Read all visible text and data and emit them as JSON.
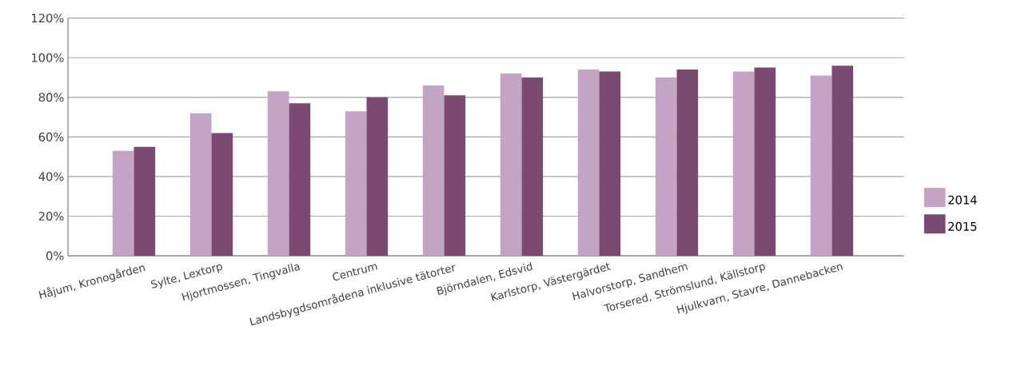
{
  "chart_data": {
    "type": "bar",
    "categories": [
      "Håjum, Kronogården",
      "Sylte, Lextorp",
      "Hjortmossen, Tingvalla",
      "Centrum",
      "Landsbygdsområdena inklusive tätorter",
      "Björndalen, Edsvid",
      "Karlstorp, Västergärdet",
      "Halvorstorp, Sandhem",
      "Torsered, Strömslund, Källstorp",
      "Hjulkvarn, Stavre, Dannebacken"
    ],
    "series": [
      {
        "name": "2014",
        "color": "#c4a4c4",
        "values": [
          53,
          72,
          83,
          73,
          86,
          92,
          94,
          90,
          93,
          91
        ]
      },
      {
        "name": "2015",
        "color": "#7b4a72",
        "values": [
          55,
          62,
          77,
          80,
          81,
          90,
          93,
          94,
          95,
          96
        ]
      }
    ],
    "ylim": [
      0,
      120
    ],
    "yticks": [
      {
        "value": 0,
        "label": "0%"
      },
      {
        "value": 20,
        "label": "20%"
      },
      {
        "value": 40,
        "label": "40%"
      },
      {
        "value": 60,
        "label": "60%"
      },
      {
        "value": 80,
        "label": "80%"
      },
      {
        "value": 100,
        "label": "100%"
      },
      {
        "value": 120,
        "label": "120%"
      }
    ],
    "grid": "y",
    "legend": "right"
  }
}
